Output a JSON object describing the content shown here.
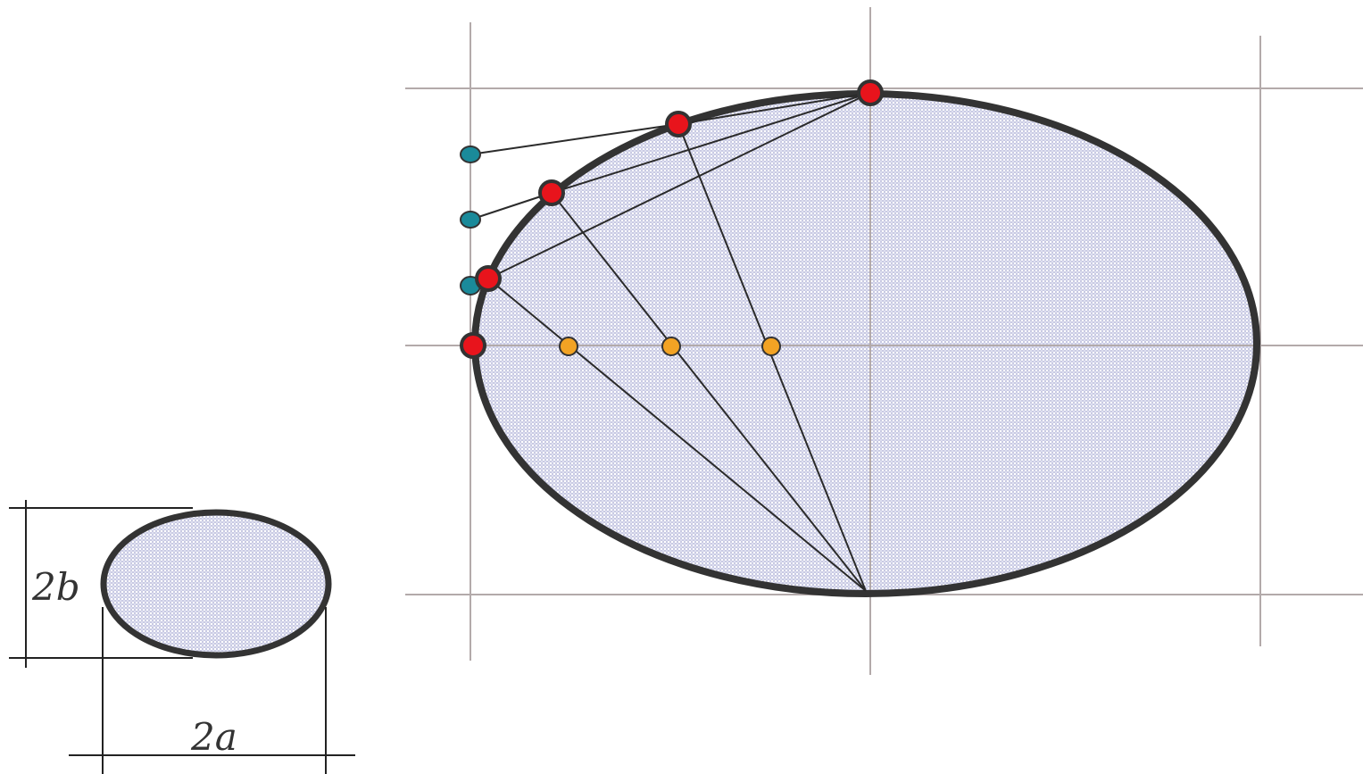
{
  "colors": {
    "background": "#ffffff",
    "ellipse_fill": "#c9cae3",
    "ellipse_outline": "#333333",
    "guide_line": "#b3aaaa",
    "construction_line": "#2b2b2b",
    "dimension_line": "#222222",
    "point_red": "#e8141c",
    "point_teal": "#1a8a9a",
    "point_orange": "#f2a324",
    "point_outline": "#333333",
    "label_text": "#333333"
  },
  "dimension_labels": {
    "height": "2b",
    "width": "2a"
  },
  "icons": {
    "main_ellipse": "ellipse-shape",
    "small_ellipse": "ellipse-shape",
    "ellipse_point": "filled-circle-dot",
    "tangent_point": "filled-circle-dot",
    "axis_point": "filled-circle-dot"
  }
}
